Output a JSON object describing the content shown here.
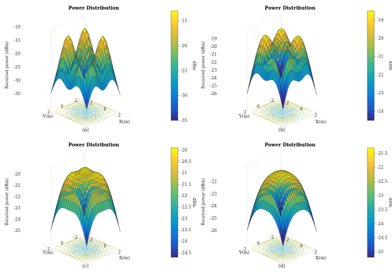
{
  "chart_data": [
    {
      "type": "surface",
      "panel_label": "(a)",
      "title": "Power Distribution",
      "zlabel": "Received power (dBm)",
      "xlabel": "X(m)",
      "ylabel": "Y(m)",
      "colorbar_label": "dBm",
      "x_ticks": [
        "-2",
        "0",
        "2"
      ],
      "y_ticks": [
        "-2",
        "0",
        "2"
      ],
      "z_ticks": [
        "-10",
        "-15",
        "-20",
        "-25",
        "-30",
        "-35"
      ],
      "zlim": [
        -35,
        -13
      ],
      "colorbar_ticks": [
        "-15",
        "-20",
        "-25",
        "-30",
        "-35"
      ],
      "colorbar_range": [
        -35,
        -13
      ]
    },
    {
      "type": "surface",
      "panel_label": "(b)",
      "title": "Power Distribution",
      "zlabel": "Received power (dBm)",
      "xlabel": "X(m)",
      "ylabel": "Y(m)",
      "colorbar_label": "dBm",
      "x_ticks": [
        "-2",
        "0",
        "2"
      ],
      "y_ticks": [
        "-2",
        "0",
        "2"
      ],
      "z_ticks": [
        "-19",
        "-20",
        "-21",
        "-22",
        "-23",
        "-24",
        "-25",
        "-26"
      ],
      "zlim": [
        -26,
        -18.5
      ],
      "colorbar_ticks": [
        "-19",
        "-20",
        "-21",
        "-22",
        "-23",
        "-24"
      ],
      "colorbar_range": [
        -24.5,
        -18.5
      ]
    },
    {
      "type": "surface",
      "panel_label": "(c)",
      "title": "Power Distribution",
      "zlabel": "Received power (dBm)",
      "xlabel": "X(m)",
      "ylabel": "Y(m)",
      "colorbar_label": "dBm",
      "x_ticks": [
        "-2",
        "0",
        "2"
      ],
      "y_ticks": [
        "-2",
        "0",
        "2"
      ],
      "z_ticks": [
        "-20",
        "-21",
        "-22",
        "-23",
        "-24",
        "-25"
      ],
      "zlim": [
        -25,
        -19.8
      ],
      "colorbar_ticks": [
        "-20",
        "-20.5",
        "-21",
        "-21.5",
        "-22",
        "-22.5",
        "-23",
        "-23.5",
        "-24",
        "-24.5"
      ],
      "colorbar_range": [
        -24.7,
        -19.9
      ]
    },
    {
      "type": "surface",
      "panel_label": "(d)",
      "title": "Power Distribution",
      "zlabel": "Received power (dBm)",
      "xlabel": "X(m)",
      "ylabel": "Y(m)",
      "colorbar_label": "dBm",
      "x_ticks": [
        "-2",
        "0",
        "2"
      ],
      "y_ticks": [
        "-2",
        "0",
        "2"
      ],
      "z_ticks": [
        "-22",
        "-23",
        "-24",
        "-25",
        "-26"
      ],
      "zlim": [
        -26,
        -21.2
      ],
      "colorbar_ticks": [
        "-21.5",
        "-22",
        "-22.5",
        "-23",
        "-23.5",
        "-24",
        "-24.5",
        "-25"
      ],
      "colorbar_range": [
        -25.2,
        -21.3
      ]
    }
  ]
}
